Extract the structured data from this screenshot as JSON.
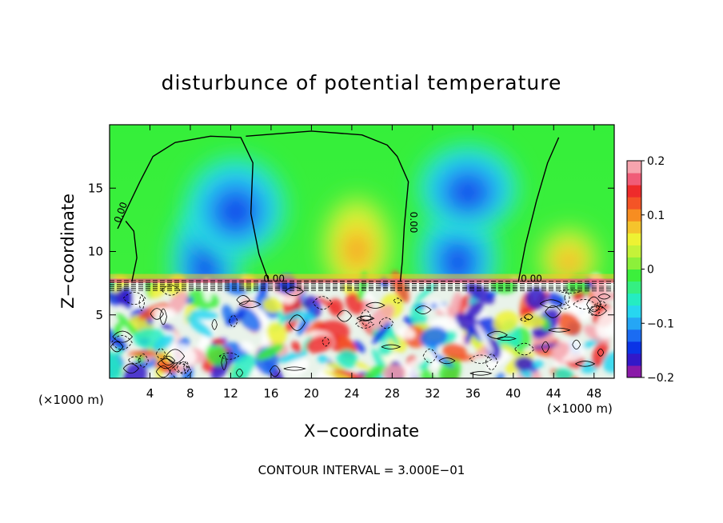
{
  "chart_data": {
    "type": "heatmap",
    "title": "disturbunce of potential temperature",
    "xlabel": "X−coordinate",
    "ylabel": "Z−coordinate",
    "x_unit_left": "(×1000 m)",
    "x_unit_right": "(×1000 m)",
    "xlim": [
      0,
      50
    ],
    "ylim": [
      0,
      20
    ],
    "x_ticks": [
      4,
      8,
      12,
      16,
      20,
      24,
      28,
      32,
      36,
      40,
      44,
      48
    ],
    "x_tick_labels": [
      "4",
      "8",
      "12",
      "16",
      "20",
      "24",
      "28",
      "32",
      "36",
      "40",
      "44",
      "48"
    ],
    "y_ticks": [
      5,
      10,
      15
    ],
    "y_tick_labels": [
      "5",
      "10",
      "15"
    ],
    "colorbar": {
      "min": -0.2,
      "max": 0.2,
      "ticks": [
        0.2,
        0.1,
        0,
        -0.1,
        -0.2
      ],
      "tick_labels": [
        "0.2",
        "0.1",
        "0",
        "−0.1",
        "−0.2"
      ],
      "colors": [
        "#8a1aa8",
        "#3318c8",
        "#0b34e6",
        "#1b6cf2",
        "#25a6f5",
        "#27d6f0",
        "#25ecc2",
        "#35ef82",
        "#3cef3c",
        "#8cf03a",
        "#c5f239",
        "#eef233",
        "#f5c42c",
        "#f78d21",
        "#f45426",
        "#ee2b2b",
        "#f05c78",
        "#f6a4ae"
      ]
    },
    "contour_labels": [
      "0.00",
      "0.00",
      "0.00",
      "0.00"
    ],
    "footer": "CONTOUR INTERVAL = 3.000E−01",
    "regions": [
      {
        "kind": "cold",
        "cx": 9.5,
        "cy": 9.2,
        "rx": 3.5,
        "ry": 4.5
      },
      {
        "kind": "cold",
        "cx": 12.5,
        "cy": 13.5,
        "rx": 5,
        "ry": 4
      },
      {
        "kind": "cold",
        "cx": 34.5,
        "cy": 9.5,
        "rx": 4,
        "ry": 4
      },
      {
        "kind": "cold",
        "cx": 35.5,
        "cy": 15,
        "rx": 5,
        "ry": 3.5
      },
      {
        "kind": "warm",
        "cx": 24.5,
        "cy": 10.5,
        "rx": 3.5,
        "ry": 4
      },
      {
        "kind": "warm",
        "cx": 45.5,
        "cy": 9.5,
        "rx": 3,
        "ry": 2.5
      }
    ],
    "contours": [
      {
        "name": "left-plume",
        "points": [
          [
            0.8,
            11.8
          ],
          [
            1.8,
            13.5
          ],
          [
            3,
            15.5
          ],
          [
            4.3,
            17.5
          ],
          [
            6.5,
            18.6
          ],
          [
            10,
            19.1
          ],
          [
            13,
            19.0
          ],
          [
            14.2,
            17
          ],
          [
            14.0,
            13
          ],
          [
            14.8,
            9.8
          ],
          [
            15.8,
            7.6
          ]
        ]
      },
      {
        "name": "left-plume-foot",
        "points": [
          [
            2.2,
            7.6
          ],
          [
            2.7,
            9.5
          ],
          [
            2.4,
            11.6
          ],
          [
            1.6,
            12.4
          ]
        ]
      },
      {
        "name": "mid-ridge",
        "points": [
          [
            13.5,
            19.1
          ],
          [
            20,
            19.5
          ],
          [
            25,
            19.2
          ],
          [
            27.5,
            18.4
          ],
          [
            28.5,
            17.5
          ],
          [
            29.6,
            15.5
          ],
          [
            29.2,
            12
          ],
          [
            29.0,
            9.2
          ],
          [
            28.8,
            7.6
          ]
        ]
      },
      {
        "name": "right-plume",
        "points": [
          [
            40.5,
            7.6
          ],
          [
            41.2,
            10.5
          ],
          [
            42.3,
            14
          ],
          [
            43.4,
            17
          ],
          [
            44.5,
            19.0
          ]
        ]
      }
    ]
  }
}
